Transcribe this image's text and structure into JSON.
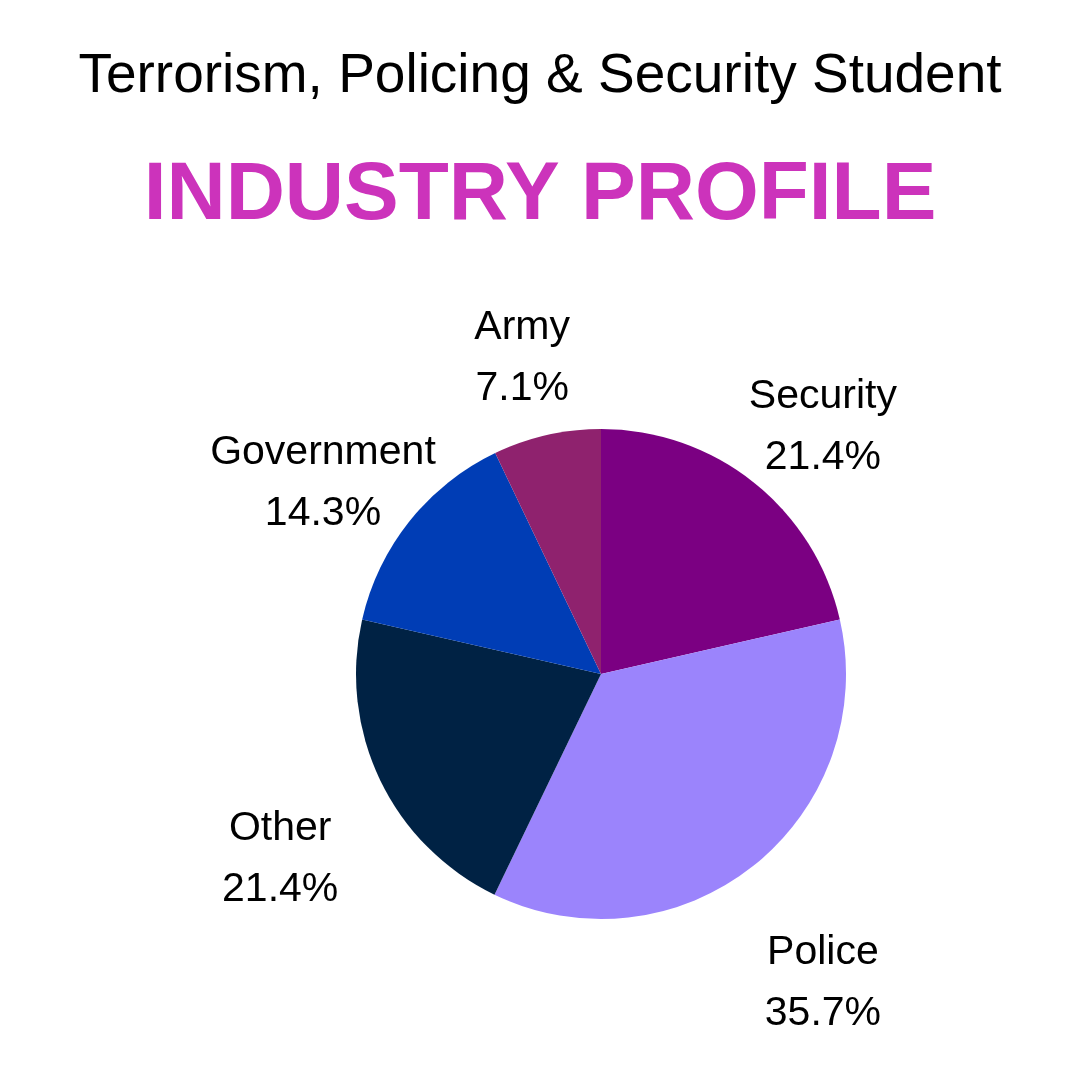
{
  "chart_data": {
    "type": "pie",
    "title": "Terrorism, Policing & Security Student",
    "subtitle": "INDUSTRY PROFILE",
    "categories": [
      "Security",
      "Police",
      "Other",
      "Government",
      "Army"
    ],
    "values": [
      21.4,
      35.7,
      21.4,
      14.3,
      7.1
    ],
    "value_labels": [
      "21.4%",
      "35.7%",
      "21.4%",
      "14.3%",
      "7.1%"
    ],
    "colors": [
      "#7b0082",
      "#9b84fc",
      "#002244",
      "#003db5",
      "#8f226e"
    ]
  }
}
